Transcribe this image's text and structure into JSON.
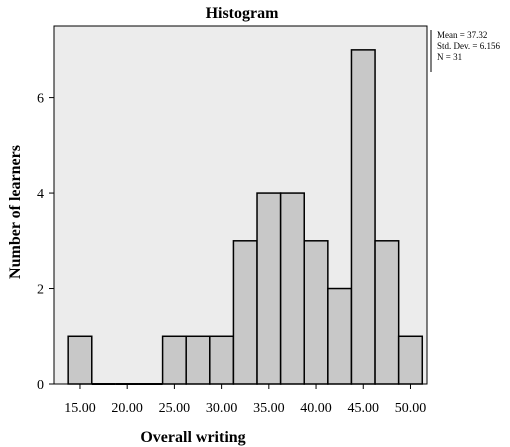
{
  "chart_data": {
    "type": "bar",
    "title": "Histogram",
    "xlabel": "Overall writing",
    "ylabel": "Number of learners",
    "bin_width": 2.5,
    "bins": [
      {
        "start": 13.75,
        "count": 1
      },
      {
        "start": 16.25,
        "count": 0
      },
      {
        "start": 18.75,
        "count": 0
      },
      {
        "start": 21.25,
        "count": 0
      },
      {
        "start": 23.75,
        "count": 1
      },
      {
        "start": 26.25,
        "count": 1
      },
      {
        "start": 28.75,
        "count": 1
      },
      {
        "start": 31.25,
        "count": 3
      },
      {
        "start": 33.75,
        "count": 4
      },
      {
        "start": 36.25,
        "count": 4
      },
      {
        "start": 38.75,
        "count": 3
      },
      {
        "start": 41.25,
        "count": 2
      },
      {
        "start": 43.75,
        "count": 7
      },
      {
        "start": 46.25,
        "count": 3
      },
      {
        "start": 48.75,
        "count": 1
      }
    ],
    "xticks": [
      15.0,
      20.0,
      25.0,
      30.0,
      35.0,
      40.0,
      45.0,
      50.0
    ],
    "xtick_labels": [
      "15.00",
      "20.00",
      "25.00",
      "30.00",
      "35.00",
      "40.00",
      "45.00",
      "50.00"
    ],
    "yticks": [
      0,
      2,
      4,
      6
    ],
    "ylim": [
      0,
      7.5
    ],
    "xlim": [
      12.25,
      51.75
    ],
    "grid": false,
    "legend_position": "top-right",
    "stats": {
      "mean": "Mean = 37.32",
      "std_dev": "Std. Dev. = 6.156",
      "n": "N = 31"
    },
    "colors": {
      "bar_fill": "#c8c8c8",
      "bar_stroke": "#000000",
      "plot_background": "#ececec"
    }
  }
}
